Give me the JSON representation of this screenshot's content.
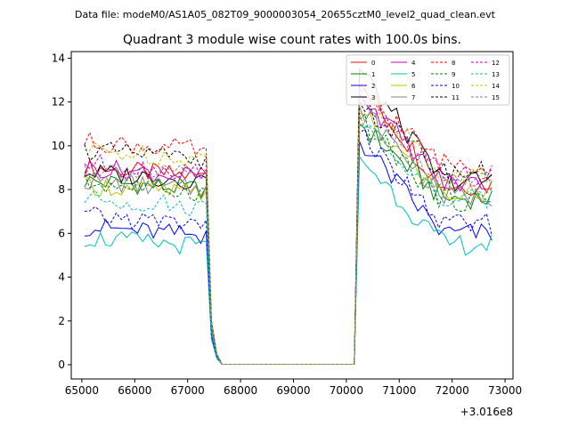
{
  "header": {
    "file_label": "Data file: modeM0/AS1A05_082T09_9000003054_20655cztM0_level2_quad_clean.evt"
  },
  "chart_data": {
    "type": "line",
    "title": "Quadrant 3 module wise count rates with 100.0s bins.",
    "xlabel": "",
    "ylabel": "",
    "x_offset_label": "+3.016e8",
    "xlim": [
      64800,
      73150
    ],
    "ylim": [
      -0.65,
      14.3
    ],
    "xticks": [
      65000,
      66000,
      67000,
      68000,
      69000,
      70000,
      71000,
      72000,
      73000
    ],
    "yticks": [
      0,
      2,
      4,
      6,
      8,
      10,
      12,
      14
    ],
    "x_start": 65050,
    "x_step": 100,
    "points": 78,
    "legend_position": "top-right",
    "series": [
      {
        "name": "0",
        "color": "#ff0000",
        "dash": "solid",
        "pre": 9.0,
        "peak": 12.8,
        "post": 8.2
      },
      {
        "name": "1",
        "color": "#008000",
        "dash": "solid",
        "pre": 8.4,
        "peak": 11.0,
        "post": 7.6
      },
      {
        "name": "2",
        "color": "#0000ff",
        "dash": "solid",
        "pre": 6.3,
        "peak": 10.2,
        "post": 6.0
      },
      {
        "name": "3",
        "color": "#000000",
        "dash": "solid",
        "pre": 8.8,
        "peak": 13.5,
        "post": 8.4
      },
      {
        "name": "4",
        "color": "#bf00bf",
        "dash": "solid",
        "pre": 9.0,
        "peak": 12.4,
        "post": 8.3
      },
      {
        "name": "5",
        "color": "#00bfbf",
        "dash": "solid",
        "pre": 5.8,
        "peak": 9.5,
        "post": 5.5
      },
      {
        "name": "6",
        "color": "#bfbf00",
        "dash": "solid",
        "pre": 8.2,
        "peak": 11.5,
        "post": 7.8
      },
      {
        "name": "7",
        "color": "#808080",
        "dash": "solid",
        "pre": 8.4,
        "peak": 11.8,
        "post": 7.7
      },
      {
        "name": "8",
        "color": "#ff0000",
        "dash": "dashed",
        "pre": 10.2,
        "peak": 12.5,
        "post": 9.2
      },
      {
        "name": "9",
        "color": "#008000",
        "dash": "dashed",
        "pre": 8.3,
        "peak": 11.2,
        "post": 7.5
      },
      {
        "name": "10",
        "color": "#0000ff",
        "dash": "dashed",
        "pre": 6.8,
        "peak": 10.6,
        "post": 6.4
      },
      {
        "name": "11",
        "color": "#000000",
        "dash": "dashed",
        "pre": 9.8,
        "peak": 12.0,
        "post": 8.8
      },
      {
        "name": "12",
        "color": "#bf00bf",
        "dash": "dashed",
        "pre": 9.2,
        "peak": 12.2,
        "post": 8.6
      },
      {
        "name": "13",
        "color": "#00bfbf",
        "dash": "dashed",
        "pre": 7.6,
        "peak": 11.0,
        "post": 7.5
      },
      {
        "name": "14",
        "color": "#bfbf00",
        "dash": "dashed",
        "pre": 9.8,
        "peak": 12.8,
        "post": 8.6
      },
      {
        "name": "15",
        "color": "#808080",
        "dash": "dashed",
        "pre": 9.0,
        "peak": 11.4,
        "post": 8.4
      }
    ]
  }
}
